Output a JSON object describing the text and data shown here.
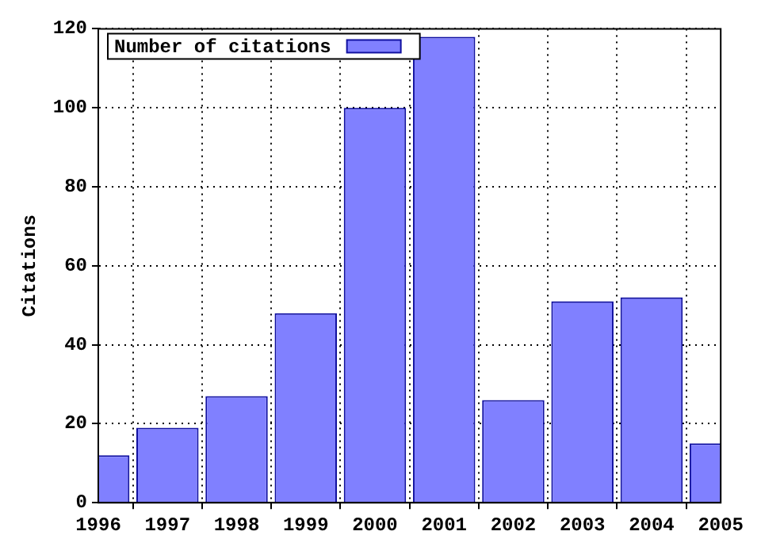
{
  "chart_data": {
    "type": "bar",
    "ylabel": "Citations",
    "x": [
      1996,
      1997,
      1998,
      1999,
      2000,
      2001,
      2002,
      2003,
      2004,
      2005
    ],
    "series": [
      {
        "name": "Number of citations",
        "color": "#8080ff",
        "values": [
          12,
          19,
          27,
          48,
          100,
          118,
          26,
          51,
          52,
          15
        ]
      }
    ],
    "xlim": [
      1996,
      2005
    ],
    "xticks": [
      1996,
      1997,
      1998,
      1999,
      2000,
      2001,
      2002,
      2003,
      2004,
      2005
    ],
    "ylim": [
      0,
      120
    ],
    "yticks": [
      0,
      20,
      40,
      60,
      80,
      100,
      120
    ],
    "grid": true,
    "legend": "top left"
  }
}
